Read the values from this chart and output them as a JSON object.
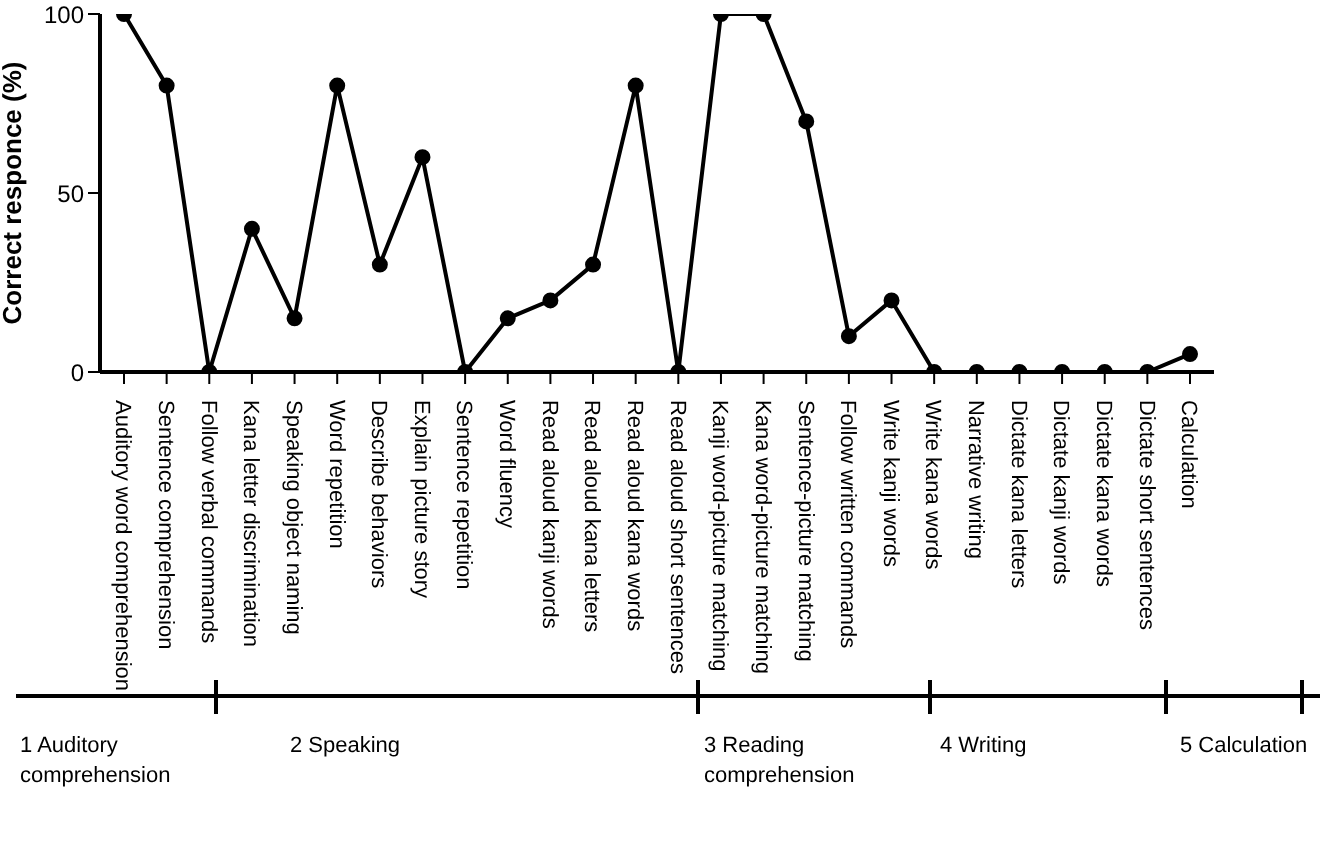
{
  "chart_data": {
    "type": "line",
    "ylabel": "Correct responce (%)",
    "categories": [
      "Auditory word comprehension",
      "Sentence comprehension",
      "Follow verbal commands",
      "Kana letter discrimination",
      "Speaking object naming",
      "Word repetition",
      "Describe behaviors",
      "Explain picture story",
      "Sentence repetition",
      "Word fluency",
      "Read aloud kanji words",
      "Read aloud kana letters",
      "Read aloud kana words",
      "Read aloud short sentences",
      "Kanji word-picture matching",
      "Kana word-picture matching",
      "Sentence-picture matching",
      "Follow written commands",
      "Write kanji words",
      "Write kana words",
      "Narrative writing",
      "Dictate kana letters",
      "Dictate kanji words",
      "Dictate kana words",
      "Dictate short sentences",
      "Calculation"
    ],
    "series": [
      {
        "color": "#000000",
        "values": [
          100,
          80,
          0,
          40,
          15,
          80,
          30,
          60,
          0,
          15,
          20,
          30,
          80,
          0,
          100,
          100,
          70,
          10,
          20,
          0,
          0,
          0,
          0,
          0,
          0,
          5
        ]
      }
    ],
    "ylim": [
      0,
      100
    ],
    "yticks": [
      0,
      50,
      100
    ],
    "marker": "circle",
    "line_style": "solid",
    "annotations": [
      "1 Auditory comprehension",
      "2 Speaking",
      "3 Reading comprehension",
      "4 Writing",
      "5 Calculation"
    ]
  }
}
